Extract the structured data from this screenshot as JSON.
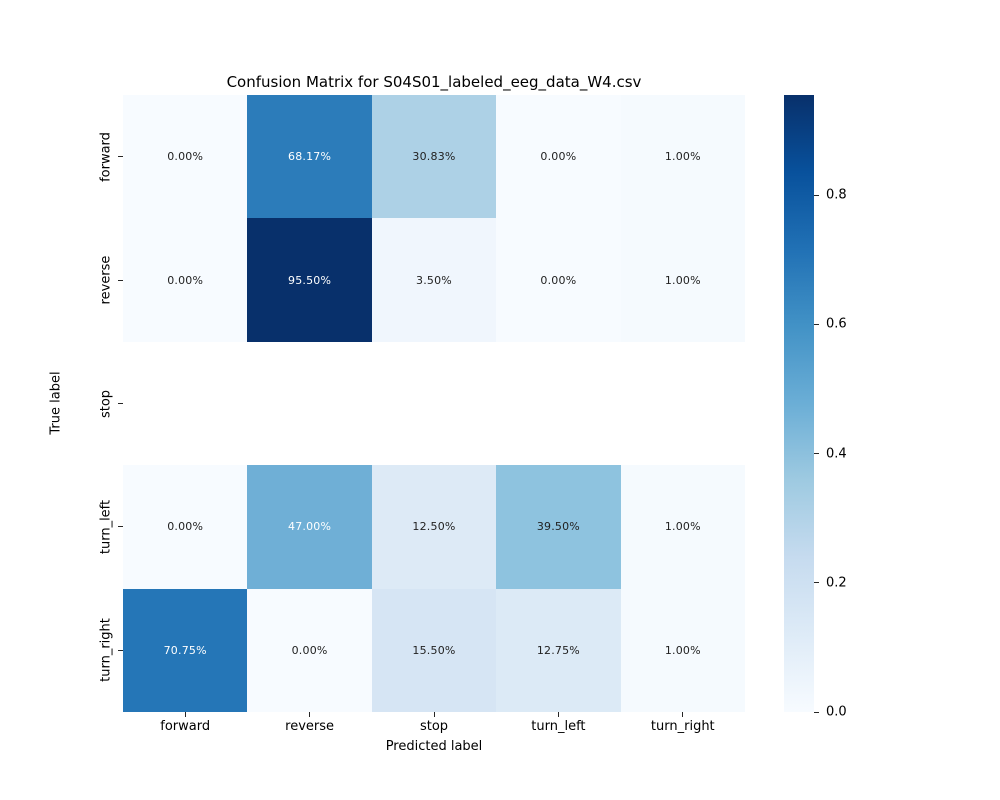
{
  "chart_data": {
    "type": "heatmap",
    "title": "Confusion Matrix for S04S01_labeled_eeg_data_W4.csv",
    "xlabel": "Predicted label",
    "ylabel": "True label",
    "x_categories": [
      "forward",
      "reverse",
      "stop",
      "turn_left",
      "turn_right"
    ],
    "y_categories": [
      "forward",
      "reverse",
      "stop",
      "turn_left",
      "turn_right"
    ],
    "values_percent": [
      [
        0.0,
        68.17,
        30.83,
        0.0,
        1.0
      ],
      [
        0.0,
        95.5,
        3.5,
        0.0,
        1.0
      ],
      [
        null,
        null,
        null,
        null,
        null
      ],
      [
        0.0,
        47.0,
        12.5,
        39.5,
        1.0
      ],
      [
        70.75,
        0.0,
        15.5,
        12.75,
        1.0
      ]
    ],
    "cell_labels": [
      [
        "0.00%",
        "68.17%",
        "30.83%",
        "0.00%",
        "1.00%"
      ],
      [
        "0.00%",
        "95.50%",
        "3.50%",
        "0.00%",
        "1.00%"
      ],
      [
        "",
        "",
        "",
        "",
        ""
      ],
      [
        "0.00%",
        "47.00%",
        "12.50%",
        "39.50%",
        "1.00%"
      ],
      [
        "70.75%",
        "0.00%",
        "15.50%",
        "12.75%",
        "1.00%"
      ]
    ],
    "cell_colors": [
      [
        "#f7fbff",
        "#2c7cba",
        "#add1e6",
        "#f7fbff",
        "#f5fafe"
      ],
      [
        "#f7fbff",
        "#08306b",
        "#f0f6fd",
        "#f7fbff",
        "#f5fafe"
      ],
      [
        "#ffffff",
        "#ffffff",
        "#ffffff",
        "#ffffff",
        "#ffffff"
      ],
      [
        "#f7fbff",
        "#6fafd6",
        "#ddeaf6",
        "#8ec3df",
        "#f5fafe"
      ],
      [
        "#2576b7",
        "#f7fbff",
        "#d6e5f4",
        "#dceaf6",
        "#f5fafe"
      ]
    ],
    "cell_text_colors": [
      [
        "#222222",
        "#ffffff",
        "#222222",
        "#222222",
        "#222222"
      ],
      [
        "#222222",
        "#ffffff",
        "#222222",
        "#222222",
        "#222222"
      ],
      [
        "#222222",
        "#222222",
        "#222222",
        "#222222",
        "#222222"
      ],
      [
        "#222222",
        "#ffffff",
        "#222222",
        "#222222",
        "#222222"
      ],
      [
        "#ffffff",
        "#222222",
        "#222222",
        "#222222",
        "#222222"
      ]
    ],
    "colormap": {
      "name": "Blues",
      "stops": [
        "#f7fbff",
        "#deebf7",
        "#c6dbef",
        "#9ecae1",
        "#6baed6",
        "#4292c6",
        "#2171b5",
        "#08519c",
        "#08306b"
      ]
    },
    "colorbar": {
      "vmin": 0.0,
      "vmax": 0.955,
      "ticks": [
        {
          "label": "0.8",
          "value": 0.8
        },
        {
          "label": "0.6",
          "value": 0.6
        },
        {
          "label": "0.4",
          "value": 0.4
        },
        {
          "label": "0.2",
          "value": 0.2
        },
        {
          "label": "0.0",
          "value": 0.0
        }
      ]
    },
    "grid": false,
    "legend": "colorbar-right"
  }
}
